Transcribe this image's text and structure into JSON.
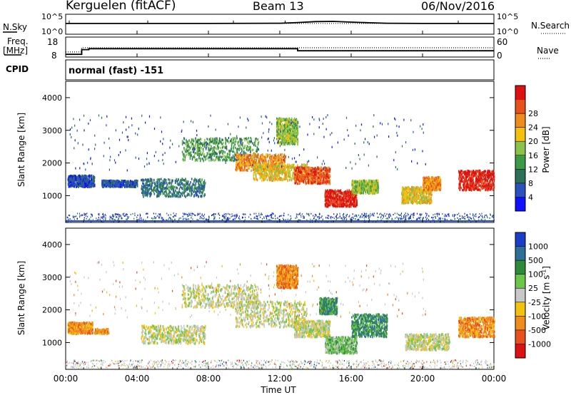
{
  "header": {
    "radar": "Kerguelen (fitACF)",
    "beam": "Beam 13",
    "date": "06/Nov/2016"
  },
  "left_labels": {
    "nsky": "N.Sky",
    "freq": "Freq.",
    "freq_unit": "[MHz]",
    "cpid": "CPID"
  },
  "right_labels": {
    "nsearch": "N.Search",
    "nave": "Nave"
  },
  "cpid_text": "normal (fast) -151",
  "chart_data": [
    {
      "type": "line",
      "panel": "noise",
      "yticks_left": [
        "10^5",
        "10^0"
      ],
      "yticks_right": [
        "10^5",
        "10^0"
      ],
      "series": [
        {
          "name": "N.Sky",
          "style": "solid",
          "x": [
            0,
            2,
            4,
            8,
            12,
            13,
            14,
            15,
            16,
            17,
            18,
            20,
            22,
            24
          ],
          "y": [
            0.82,
            0.82,
            0.82,
            0.82,
            0.84,
            0.9,
            0.98,
            1.0,
            0.94,
            0.88,
            0.84,
            0.82,
            0.82,
            0.82
          ]
        },
        {
          "name": "N.Search",
          "style": "dotted",
          "x": [
            0,
            24
          ],
          "y": [
            0.82,
            0.82
          ]
        }
      ],
      "ylim": [
        0,
        1
      ]
    },
    {
      "type": "line",
      "panel": "frequency",
      "yticks_left": [
        "18",
        "8"
      ],
      "yticks_right": [
        "60",
        "0"
      ],
      "series": [
        {
          "name": "Freq",
          "style": "solid",
          "x": [
            0,
            0.9,
            0.9,
            1.3,
            1.3,
            13,
            13,
            24
          ],
          "y": [
            8.8,
            8.8,
            11.8,
            11.8,
            12.4,
            12.4,
            11.1,
            11.1
          ]
        },
        {
          "name": "Nave",
          "style": "dotted",
          "x": [
            0,
            0.9,
            0.9,
            24
          ],
          "y": [
            10.3,
            10.3,
            13,
            13
          ]
        }
      ],
      "ylim": [
        8,
        18
      ]
    },
    {
      "type": "heatmap",
      "panel": "power",
      "ylabel": "Slant Range [km]",
      "yticks": [
        "1000",
        "2000",
        "3000",
        "4000"
      ],
      "ylim": [
        180,
        4500
      ],
      "xlim": [
        0,
        24
      ],
      "colorbar": {
        "label": "Power [dB]",
        "ticks": [
          "4",
          "8",
          "12",
          "16",
          "20",
          "24",
          "28"
        ],
        "colors": [
          "#1010ff",
          "#2a52be",
          "#2e6f5a",
          "#3a9a45",
          "#8bc34a",
          "#f2c20e",
          "#f08c1e",
          "#e8501c",
          "#dd1111"
        ]
      },
      "regions": [
        {
          "x0": 0.1,
          "x1": 1.6,
          "y0": 1300,
          "y1": 1650,
          "level": 1
        },
        {
          "x0": 2.0,
          "x1": 4.0,
          "y0": 1300,
          "y1": 1500,
          "level": 1
        },
        {
          "x0": 4.2,
          "x1": 7.8,
          "y0": 1000,
          "y1": 1550,
          "level": 2
        },
        {
          "x0": 6.5,
          "x1": 10.8,
          "y0": 2100,
          "y1": 2800,
          "level": 3
        },
        {
          "x0": 9.5,
          "x1": 12.3,
          "y0": 1800,
          "y1": 2300,
          "level": 6
        },
        {
          "x0": 10.5,
          "x1": 13.5,
          "y0": 1500,
          "y1": 2000,
          "level": 5
        },
        {
          "x0": 12.8,
          "x1": 14.8,
          "y0": 1400,
          "y1": 1900,
          "level": 7
        },
        {
          "x0": 14.5,
          "x1": 16.3,
          "y0": 700,
          "y1": 1200,
          "level": 8
        },
        {
          "x0": 16.0,
          "x1": 17.5,
          "y0": 1100,
          "y1": 1500,
          "level": 4
        },
        {
          "x0": 18.8,
          "x1": 20.5,
          "y0": 800,
          "y1": 1300,
          "level": 5
        },
        {
          "x0": 20.0,
          "x1": 21.0,
          "y0": 1200,
          "y1": 1600,
          "level": 6
        },
        {
          "x0": 22.0,
          "x1": 24.0,
          "y0": 1200,
          "y1": 1800,
          "level": 8
        },
        {
          "x0": 11.8,
          "x1": 13.0,
          "y0": 2600,
          "y1": 3400,
          "level": 4
        }
      ]
    },
    {
      "type": "heatmap",
      "panel": "velocity",
      "ylabel": "Slant Range [km]",
      "yticks": [
        "1000",
        "2000",
        "3000",
        "4000"
      ],
      "ylim": [
        180,
        4500
      ],
      "xlim": [
        0,
        24
      ],
      "xticks": [
        "00:00",
        "04:00",
        "08:00",
        "12:00",
        "16:00",
        "20:00",
        "00:00"
      ],
      "xlabel": "Time UT",
      "colorbar": {
        "label": "Velocity [m s-1]",
        "ticks": [
          "1000",
          "500",
          "100",
          "25",
          "-25",
          "-100",
          "-500",
          "-1000"
        ],
        "colors": [
          "#1a3ec8",
          "#2e6f9a",
          "#2e8b3a",
          "#6cc64a",
          "#c8c8c8",
          "#f2c20e",
          "#f08c1e",
          "#e8501c",
          "#dd1111"
        ]
      },
      "regions": [
        {
          "x0": 0.1,
          "x1": 1.5,
          "y0": 1300,
          "y1": 1650,
          "level": 6
        },
        {
          "x0": 1.6,
          "x1": 2.4,
          "y0": 1300,
          "y1": 1450,
          "level": 6
        },
        {
          "x0": 4.2,
          "x1": 7.8,
          "y0": 1000,
          "y1": 1550,
          "level": 4
        },
        {
          "x0": 6.5,
          "x1": 10.8,
          "y0": 2100,
          "y1": 2800,
          "level": 4
        },
        {
          "x0": 9.5,
          "x1": 13.5,
          "y0": 1500,
          "y1": 2300,
          "level": 4
        },
        {
          "x0": 12.8,
          "x1": 14.8,
          "y0": 1200,
          "y1": 1700,
          "level": 4
        },
        {
          "x0": 14.5,
          "x1": 16.3,
          "y0": 700,
          "y1": 1200,
          "level": 3
        },
        {
          "x0": 16.0,
          "x1": 18.0,
          "y0": 1200,
          "y1": 1900,
          "level": 2
        },
        {
          "x0": 19.0,
          "x1": 21.5,
          "y0": 800,
          "y1": 1300,
          "level": 4
        },
        {
          "x0": 22.0,
          "x1": 24.0,
          "y0": 1200,
          "y1": 1800,
          "level": 6
        },
        {
          "x0": 11.8,
          "x1": 13.0,
          "y0": 2700,
          "y1": 3400,
          "level": 6
        },
        {
          "x0": 14.2,
          "x1": 15.2,
          "y0": 1900,
          "y1": 2400,
          "level": 2
        }
      ]
    }
  ]
}
